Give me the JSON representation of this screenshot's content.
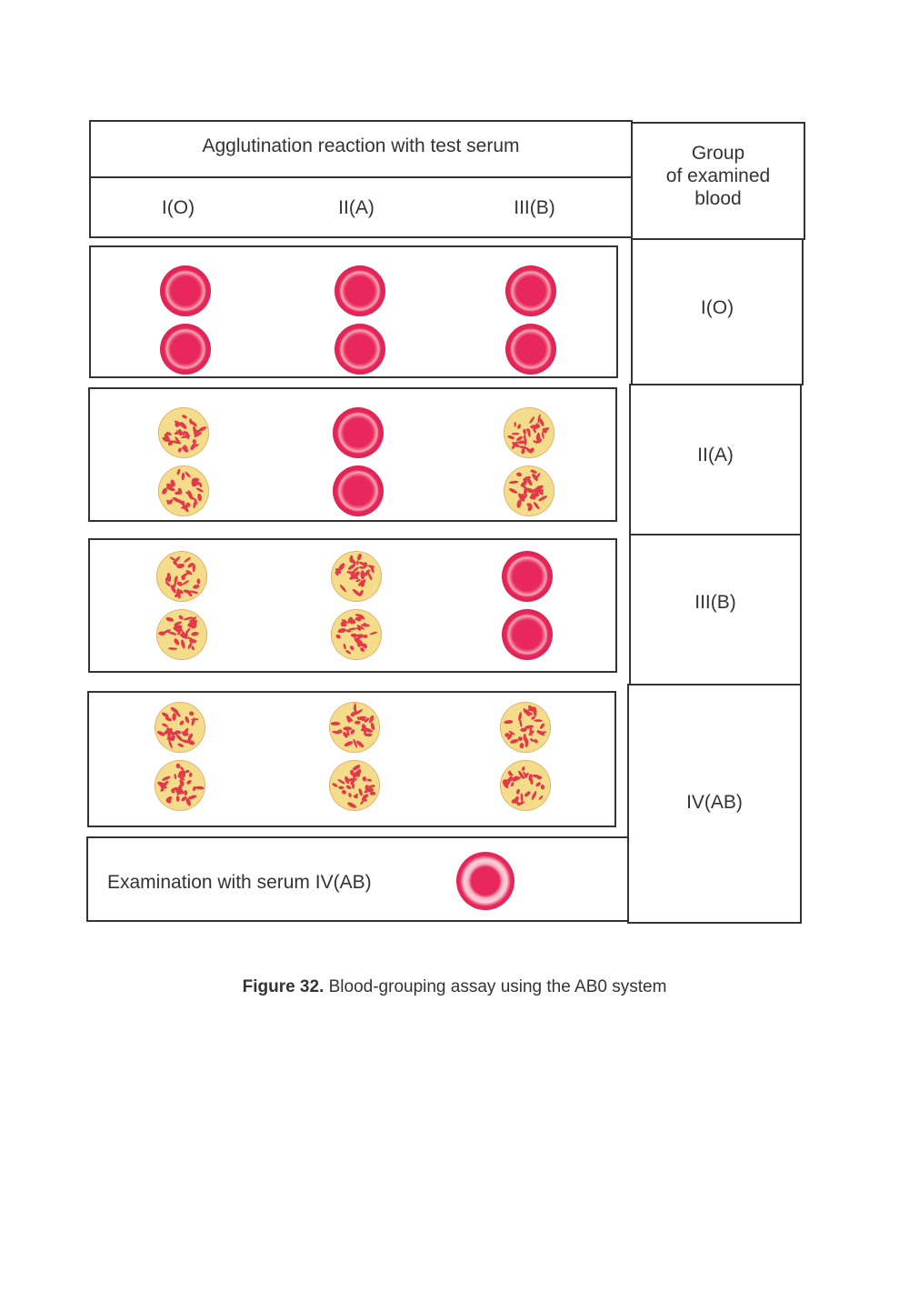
{
  "header": {
    "reaction_title": "Agglutination reaction with test serum",
    "serum_columns": [
      "I(O)",
      "II(A)",
      "III(B)"
    ],
    "group_title_line1": "Group",
    "group_title_line2": "of examined",
    "group_title_line3": "blood"
  },
  "rows": [
    {
      "group": "I(O)",
      "results": [
        "negative",
        "negative",
        "negative"
      ]
    },
    {
      "group": "II(A)",
      "results": [
        "agglutination",
        "negative",
        "agglutination"
      ]
    },
    {
      "group": "III(B)",
      "results": [
        "agglutination",
        "agglutination",
        "negative"
      ]
    },
    {
      "group": "IV(AB)",
      "results": [
        "agglutination",
        "agglutination",
        "agglutination"
      ]
    }
  ],
  "serum_ab_row": {
    "label": "Examination with serum IV(AB)",
    "result": "negative"
  },
  "caption": {
    "figure_label": "Figure 32.",
    "text": "Blood-grouping assay using the AB0 system"
  },
  "colors": {
    "border": "#333333",
    "drop_red": "#e8285a",
    "agglutinate_background": "#f3dc8a",
    "clump_red": "#e23a4a"
  }
}
